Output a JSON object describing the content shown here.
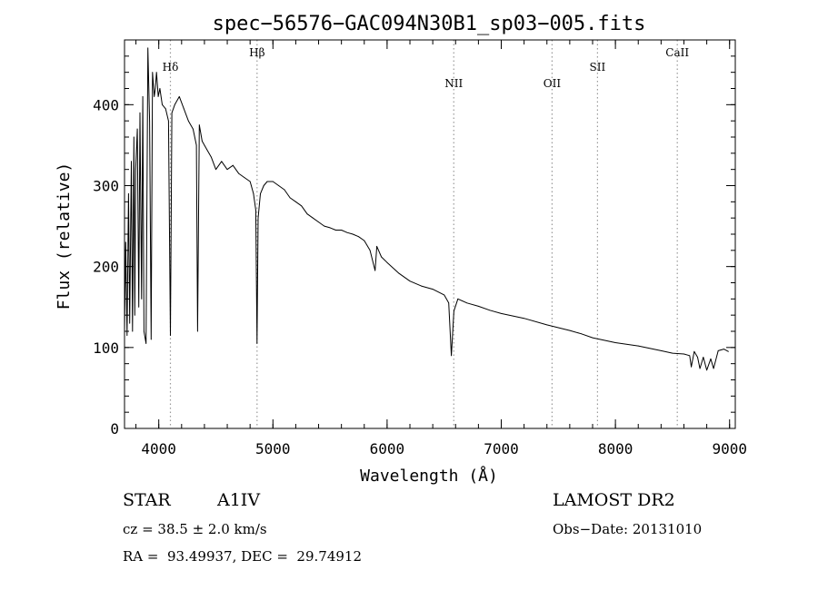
{
  "chart_data": {
    "type": "line",
    "title": "spec−56576−GAC094N30B1_sp03−005.fits",
    "xlabel": "Wavelength (Å)",
    "ylabel": "Flux (relative)",
    "xlim": [
      3700,
      9050
    ],
    "ylim": [
      0,
      480
    ],
    "xticks": [
      4000,
      5000,
      6000,
      7000,
      8000,
      9000
    ],
    "yticks": [
      0,
      100,
      200,
      300,
      400
    ],
    "grid": false,
    "line_color": "#000000",
    "marker_color": "#999999",
    "line_markers": [
      {
        "label": "Hδ",
        "x": 4102,
        "label_row": "low"
      },
      {
        "label": "Hβ",
        "x": 4861,
        "label_row": "high"
      },
      {
        "label": "NII",
        "x": 6584,
        "label_row": "mid"
      },
      {
        "label": "OII",
        "x": 7445,
        "label_row": "mid"
      },
      {
        "label": "SII",
        "x": 7843,
        "label_row": "low"
      },
      {
        "label": "CaII",
        "x": 8542,
        "label_row": "high"
      }
    ],
    "series": [
      {
        "x": [
          3700,
          3710,
          3722,
          3735,
          3745,
          3760,
          3770,
          3782,
          3790,
          3798,
          3812,
          3825,
          3835,
          3850,
          3860,
          3870,
          3889,
          3905,
          3920,
          3933,
          3945,
          3960,
          3970,
          3980,
          3995,
          4010,
          4030,
          4060,
          4085,
          4102,
          4115,
          4140,
          4180,
          4220,
          4260,
          4300,
          4330,
          4340,
          4355,
          4380,
          4420,
          4460,
          4500,
          4550,
          4600,
          4650,
          4700,
          4750,
          4800,
          4830,
          4850,
          4861,
          4870,
          4890,
          4920,
          4950,
          5000,
          5050,
          5100,
          5150,
          5200,
          5250,
          5300,
          5350,
          5400,
          5450,
          5500,
          5550,
          5600,
          5650,
          5700,
          5750,
          5800,
          5850,
          5895,
          5910,
          5950,
          6000,
          6100,
          6200,
          6300,
          6400,
          6500,
          6540,
          6563,
          6585,
          6620,
          6700,
          6800,
          6900,
          7000,
          7200,
          7400,
          7600,
          7700,
          7800,
          8000,
          8200,
          8400,
          8500,
          8600,
          8650,
          8665,
          8690,
          8720,
          8740,
          8770,
          8800,
          8835,
          8860,
          8900,
          8950,
          8990
        ],
        "y": [
          120,
          230,
          115,
          290,
          130,
          330,
          120,
          360,
          140,
          320,
          370,
          150,
          390,
          160,
          410,
          120,
          105,
          470,
          380,
          110,
          440,
          410,
          420,
          440,
          410,
          420,
          400,
          395,
          380,
          115,
          390,
          400,
          410,
          395,
          380,
          370,
          350,
          120,
          375,
          355,
          345,
          335,
          320,
          330,
          320,
          325,
          315,
          310,
          305,
          290,
          270,
          105,
          260,
          290,
          300,
          305,
          305,
          300,
          295,
          285,
          280,
          275,
          265,
          260,
          255,
          250,
          248,
          245,
          245,
          242,
          240,
          237,
          232,
          220,
          195,
          225,
          212,
          205,
          192,
          182,
          176,
          172,
          165,
          155,
          90,
          145,
          160,
          155,
          151,
          146,
          142,
          136,
          128,
          121,
          117,
          112,
          106,
          102,
          96,
          93,
          92,
          90,
          76,
          95,
          88,
          74,
          88,
          72,
          86,
          74,
          96,
          98,
          95
        ]
      }
    ]
  },
  "info": {
    "object_type": "STAR",
    "subclass": "A1IV",
    "redshift_line": "cz = 38.5 ± 2.0 km/s",
    "coords_line": "RA =  93.49937, DEC =  29.74912",
    "survey": "LAMOST DR2",
    "obs_date_line": "Obs−Date: 20131010"
  }
}
